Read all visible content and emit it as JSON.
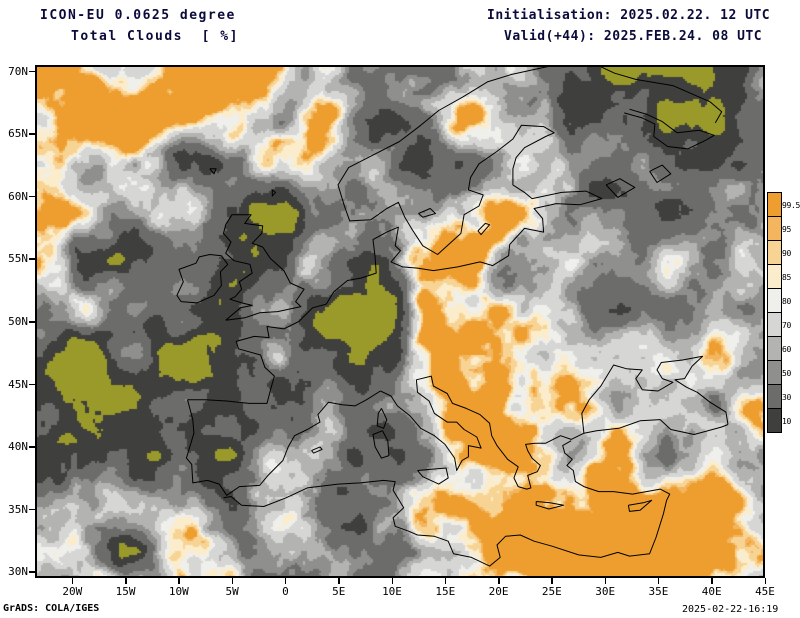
{
  "header": {
    "line1": "ICON-EU 0.0625 degree",
    "line2": "Total Clouds  [ %]",
    "init": "Initialisation: 2025.02.22. 12 UTC",
    "valid": "Valid(+44): 2025.FEB.24. 08 UTC"
  },
  "footer": {
    "engine": "GrADS: COLA/IGES",
    "created": "2025-02-22-16:19"
  },
  "axes": {
    "lat": [
      "70N",
      "65N",
      "60N",
      "55N",
      "50N",
      "45N",
      "40N",
      "35N",
      "30N"
    ],
    "lon": [
      "20W",
      "15W",
      "10W",
      "5W",
      "0",
      "5E",
      "10E",
      "15E",
      "20E",
      "25E",
      "30E",
      "35E",
      "40E",
      "45E"
    ]
  },
  "colorbar": {
    "labels": [
      "99.5",
      "95",
      "90",
      "85",
      "80",
      "70",
      "60",
      "50",
      "30",
      "10"
    ],
    "colors": [
      "#ee9e2e",
      "#f3b55e",
      "#f8d494",
      "#fbeccb",
      "#efefec",
      "#d6d6d4",
      "#b3b3b1",
      "#8f8f8d",
      "#6c6c6a",
      "#3f3f3d"
    ]
  },
  "map_colors": {
    "background": "#9a9a2a",
    "coastline": "#000000",
    "frame": "#000000"
  },
  "chart_data": {
    "type": "heatmap",
    "title": "Total Clouds [%]",
    "model": "ICON-EU 0.0625 degree",
    "initialisation": "2025.02.22. 12 UTC",
    "valid": "2025.FEB.24. 08 UTC",
    "lead_hours": 44,
    "region": {
      "lon_min": -23.5,
      "lon_max": 45.0,
      "lat_min": 29.5,
      "lat_max": 70.5
    },
    "levels_percent": [
      10,
      30,
      50,
      60,
      70,
      80,
      85,
      90,
      95,
      99.5
    ],
    "legend_position": "right",
    "legend_orientation": "vertical",
    "grid": "off",
    "background_value_color": "#9a9a2a"
  }
}
